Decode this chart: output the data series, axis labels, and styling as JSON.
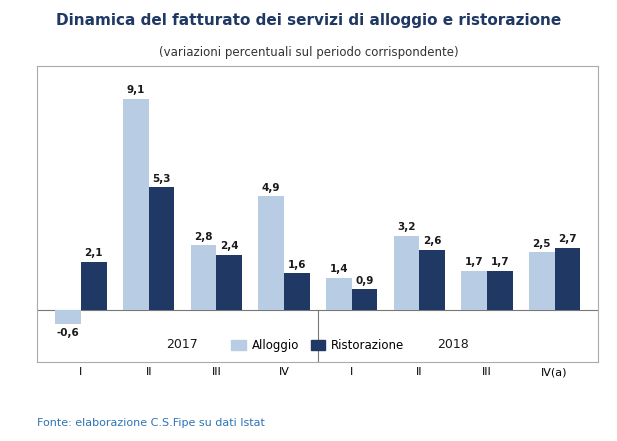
{
  "title": "Dinamica del fatturato dei servizi di alloggio e ristorazione",
  "subtitle": "(variazioni percentuali sul periodo corrispondente)",
  "groups": [
    "I",
    "II",
    "III",
    "IV",
    "I",
    "II",
    "III",
    "IV(a)"
  ],
  "alloggio": [
    -0.6,
    9.1,
    2.8,
    4.9,
    1.4,
    3.2,
    1.7,
    2.5
  ],
  "ristorazione": [
    2.1,
    5.3,
    2.4,
    1.6,
    0.9,
    2.6,
    1.7,
    2.7
  ],
  "color_alloggio": "#b8cce4",
  "color_ristorazione": "#1f3864",
  "ylim": [
    -2.2,
    10.5
  ],
  "source": "Fonte: elaborazione C.S.Fipe su dati Istat",
  "source_color": "#2e74b5",
  "legend_labels": [
    "Alloggio",
    "Ristorazione"
  ],
  "bar_width": 0.38,
  "title_fontsize": 11,
  "subtitle_fontsize": 8.5,
  "label_fontsize": 7.5,
  "tick_fontsize": 8,
  "year_fontsize": 9,
  "source_fontsize": 8,
  "title_color": "#1f3864",
  "background_color": "#ffffff",
  "plot_background": "#ffffff",
  "border_color": "#aaaaaa"
}
